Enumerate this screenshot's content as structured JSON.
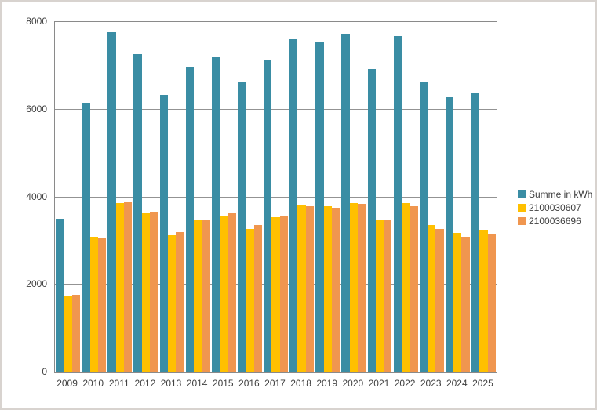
{
  "window": {
    "background": "#ffffff",
    "border_color": "#d8d3cf"
  },
  "chart_data": {
    "type": "bar",
    "title": "",
    "xlabel": "",
    "ylabel": "",
    "categories": [
      "2009",
      "2010",
      "2011",
      "2012",
      "2013",
      "2014",
      "2015",
      "2016",
      "2017",
      "2018",
      "2019",
      "2020",
      "2021",
      "2022",
      "2023",
      "2024",
      "2025"
    ],
    "series": [
      {
        "name": "Summe in kWh",
        "color": "#3a8da4",
        "values": [
          3515,
          6165,
          7760,
          7270,
          6330,
          6960,
          7190,
          6630,
          7120,
          7600,
          7550,
          7710,
          6935,
          7670,
          6640,
          6275,
          6380
        ]
      },
      {
        "name": "2100030607",
        "color": "#ffc000",
        "values": [
          1740,
          3090,
          3870,
          3625,
          3130,
          3470,
          3560,
          3270,
          3540,
          3810,
          3790,
          3860,
          3465,
          3870,
          3360,
          3180,
          3235
        ]
      },
      {
        "name": "2100036696",
        "color": "#f0964f",
        "values": [
          1775,
          3075,
          3890,
          3645,
          3200,
          3490,
          3630,
          3360,
          3580,
          3790,
          3760,
          3850,
          3470,
          3800,
          3280,
          3095,
          3145
        ]
      }
    ],
    "ylim": [
      0,
      8000
    ],
    "ytick_interval": 2000,
    "yticks": [
      "0",
      "2000",
      "4000",
      "6000",
      "8000"
    ],
    "grid": "horizontal-only",
    "gridline_color": "#939393",
    "axis_text_color": "#3f3f3f",
    "legend_position": "right",
    "legend_labels": [
      "Summe in kWh",
      "2100030607",
      "2100036696"
    ]
  }
}
